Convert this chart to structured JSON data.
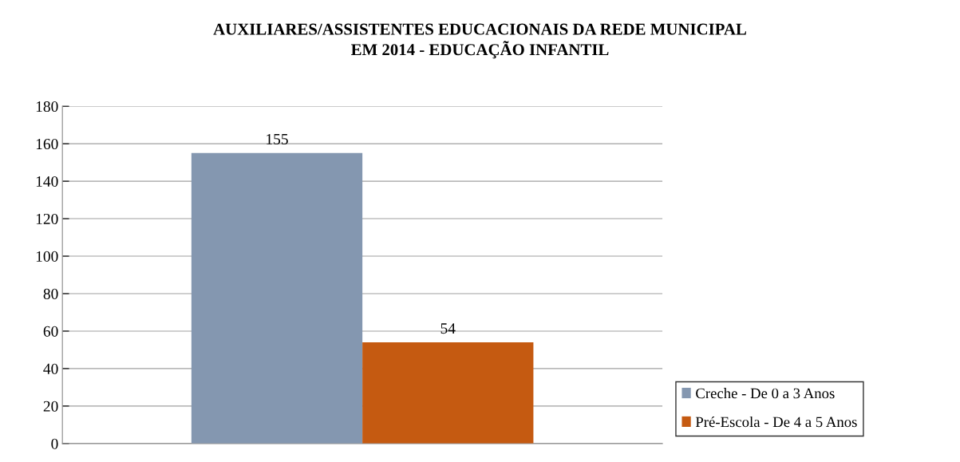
{
  "chart_data": {
    "type": "bar",
    "title": "AUXILIARES/ASSISTENTES EDUCACIONAIS DA REDE MUNICIPAL\nEM 2014 - EDUCAÇÃO INFANTIL",
    "categories": [
      null
    ],
    "series": [
      {
        "name": "Creche - De 0 a 3 Anos",
        "color": "#8497b0",
        "values": [
          155
        ]
      },
      {
        "name": "Pré-Escola - De 4 a 5 Anos",
        "color": "#c55a11",
        "values": [
          54
        ]
      }
    ],
    "ylim": [
      0,
      180
    ],
    "yticks": [
      0,
      20,
      40,
      60,
      80,
      100,
      120,
      140,
      160,
      180
    ],
    "grid": "y",
    "legend": "bottom right",
    "data_labels": true
  }
}
